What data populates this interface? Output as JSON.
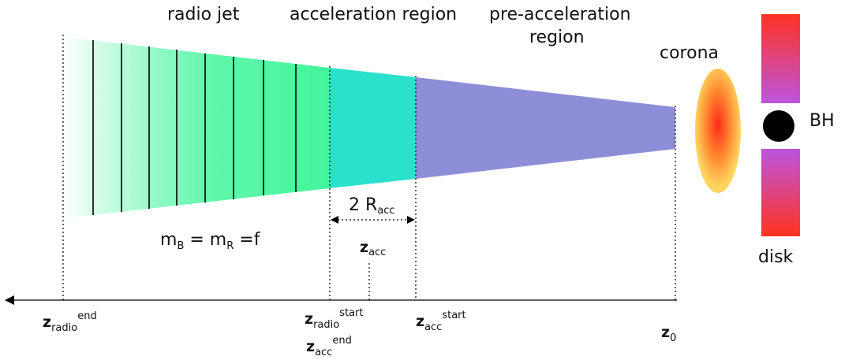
{
  "regions": {
    "radio_jet": "radio jet",
    "acceleration": "acceleration region",
    "pre_acceleration_line1": "pre-acceleration",
    "pre_acceleration_line2": "region",
    "corona": "corona",
    "black_hole": "BH",
    "disk": "disk"
  },
  "annotations": {
    "acc_size_prefix": "2 R",
    "acc_size_sub": "acc",
    "equipartition_mB": "m",
    "equipartition_mB_sub": "B",
    "equipartition_eq": " = m",
    "equipartition_mR_sub": "R",
    "equipartition_f": " =f",
    "z_acc": "z",
    "z_acc_sub": "acc"
  },
  "axis": {
    "z_radio_end": {
      "base": "z",
      "sub": "radio",
      "sup": "end"
    },
    "z_radio_start": {
      "base": "z",
      "sub": "radio",
      "sup": "start"
    },
    "z_acc_end": {
      "base": "z",
      "sub": "acc",
      "sup": "end"
    },
    "z_acc_start": {
      "base": "z",
      "sub": "acc",
      "sup": "start"
    },
    "z_0": {
      "base": "z",
      "sub": "0"
    }
  },
  "colors": {
    "radio_jet_fill": "#44f59c",
    "acceleration_fill": "#2be0cc",
    "pre_acceleration_fill": "#8e8ed8",
    "corona_center": "#ff2a1a",
    "corona_edge": "#ffd560",
    "disk_red": "#ff3322",
    "disk_purple": "#bb55dd",
    "black_hole": "#000000"
  }
}
